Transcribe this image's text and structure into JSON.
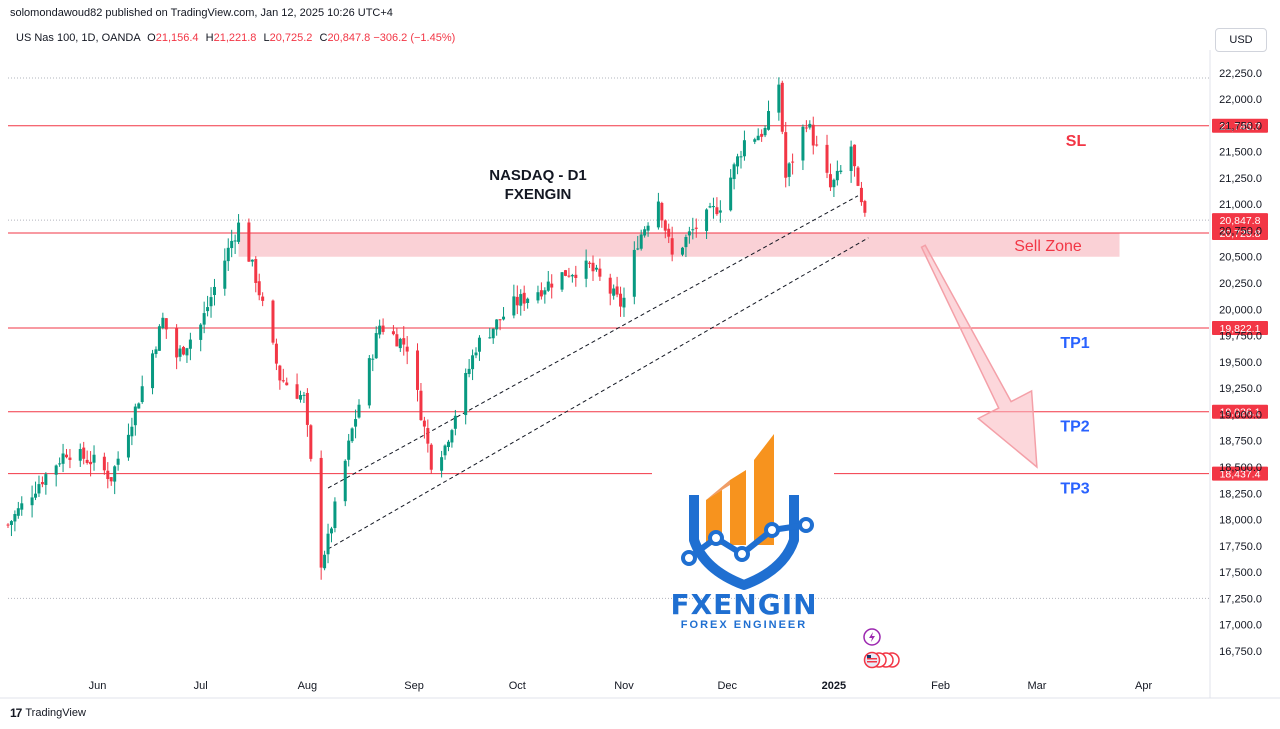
{
  "header": {
    "publisher_line": "solomondawoud82 published on TradingView.com, Jan 12, 2025 10:26 UTC+4",
    "symbol": "US Nas 100, 1D, OANDA",
    "ohlc": [
      {
        "label": "O",
        "value": "21,156.4"
      },
      {
        "label": "H",
        "value": "21,221.8"
      },
      {
        "label": "L",
        "value": "20,725.2"
      },
      {
        "label": "C",
        "value": "20,847.8"
      }
    ],
    "change": "−306.2 (−1.45%)",
    "currency": "USD"
  },
  "footer": {
    "brand": "TradingView"
  },
  "logo": {
    "name": "FXENGIN",
    "tagline": "FOREX ENGINEER"
  },
  "colors": {
    "bull": "#089981",
    "bear": "#f23645",
    "level_line": "#f23645",
    "zone_fill": "#f9c9cf",
    "tp_text": "#2962ff",
    "logo_orange": "#f7931e",
    "logo_blue": "#1f6fd1",
    "logo_navy": "#1a3a6b"
  },
  "chart_data": {
    "type": "candlestick",
    "title": "NASDAQ - D1",
    "subtitle": "FXENGIN",
    "y_range": [
      16550,
      22400
    ],
    "y_ticks": [
      {
        "value": 16750,
        "label": "16,750.0"
      },
      {
        "value": 17000,
        "label": "17,000.0"
      },
      {
        "value": 17250,
        "label": "17,250.0"
      },
      {
        "value": 17500,
        "label": "17,500.0"
      },
      {
        "value": 17750,
        "label": "17,750.0"
      },
      {
        "value": 18000,
        "label": "18,000.0"
      },
      {
        "value": 18250,
        "label": "18,250.0"
      },
      {
        "value": 18500,
        "label": "18,500.0"
      },
      {
        "value": 18750,
        "label": "18,750.0"
      },
      {
        "value": 19000,
        "label": "19,000.0"
      },
      {
        "value": 19250,
        "label": "19,250.0"
      },
      {
        "value": 19500,
        "label": "19,500.0"
      },
      {
        "value": 19750,
        "label": "19,750.0"
      },
      {
        "value": 20000,
        "label": "20,000.0"
      },
      {
        "value": 20250,
        "label": "20,250.0"
      },
      {
        "value": 20500,
        "label": "20,500.0"
      },
      {
        "value": 20750,
        "label": "20,750.0"
      },
      {
        "value": 21000,
        "label": "21,000.0"
      },
      {
        "value": 21250,
        "label": "21,250.0"
      },
      {
        "value": 21500,
        "label": "21,500.0"
      },
      {
        "value": 21750,
        "label": "21,750.0"
      },
      {
        "value": 22000,
        "label": "22,000.0"
      },
      {
        "value": 22250,
        "label": "22,250.0"
      }
    ],
    "x_range": [
      "2024-05-06",
      "2025-04-20"
    ],
    "x_ticks": [
      {
        "date": "2024-06-01",
        "label": "Jun",
        "bold": false
      },
      {
        "date": "2024-07-01",
        "label": "Jul",
        "bold": false
      },
      {
        "date": "2024-08-01",
        "label": "Aug",
        "bold": false
      },
      {
        "date": "2024-09-01",
        "label": "Sep",
        "bold": false
      },
      {
        "date": "2024-10-01",
        "label": "Oct",
        "bold": false
      },
      {
        "date": "2024-11-01",
        "label": "Nov",
        "bold": false
      },
      {
        "date": "2024-12-01",
        "label": "Dec",
        "bold": false
      },
      {
        "date": "2025-01-01",
        "label": "2025",
        "bold": true
      },
      {
        "date": "2025-02-01",
        "label": "Feb",
        "bold": false
      },
      {
        "date": "2025-03-01",
        "label": "Mar",
        "bold": false
      },
      {
        "date": "2025-04-01",
        "label": "Apr",
        "bold": false
      }
    ],
    "price_path": [
      [
        "2024-05-06",
        17950
      ],
      [
        "2024-05-15",
        18350
      ],
      [
        "2024-05-23",
        18650
      ],
      [
        "2024-05-31",
        18550
      ],
      [
        "2024-06-05",
        18400
      ],
      [
        "2024-06-12",
        19050
      ],
      [
        "2024-06-20",
        19900
      ],
      [
        "2024-06-24",
        19550
      ],
      [
        "2024-07-01",
        19850
      ],
      [
        "2024-07-10",
        20650
      ],
      [
        "2024-07-12",
        20800
      ],
      [
        "2024-07-17",
        20300
      ],
      [
        "2024-07-24",
        19350
      ],
      [
        "2024-07-31",
        19150
      ],
      [
        "2024-08-05",
        17600
      ],
      [
        "2024-08-07",
        17800
      ],
      [
        "2024-08-14",
        18850
      ],
      [
        "2024-08-22",
        19850
      ],
      [
        "2024-08-30",
        19650
      ],
      [
        "2024-09-06",
        18550
      ],
      [
        "2024-09-10",
        18700
      ],
      [
        "2024-09-19",
        19650
      ],
      [
        "2024-09-30",
        20050
      ],
      [
        "2024-10-08",
        20200
      ],
      [
        "2024-10-15",
        20350
      ],
      [
        "2024-10-22",
        20400
      ],
      [
        "2024-10-31",
        20050
      ],
      [
        "2024-11-01",
        20100
      ],
      [
        "2024-11-05",
        20650
      ],
      [
        "2024-11-11",
        21050
      ],
      [
        "2024-11-15",
        20500
      ],
      [
        "2024-11-21",
        20750
      ],
      [
        "2024-11-29",
        21000
      ],
      [
        "2024-12-06",
        21600
      ],
      [
        "2024-12-12",
        21700
      ],
      [
        "2024-12-16",
        22150
      ],
      [
        "2024-12-18",
        21250
      ],
      [
        "2024-12-24",
        21800
      ],
      [
        "2024-12-31",
        21150
      ],
      [
        "2025-01-03",
        21300
      ],
      [
        "2025-01-06",
        21550
      ],
      [
        "2025-01-08",
        21100
      ],
      [
        "2025-01-10",
        20848
      ]
    ],
    "levels": [
      {
        "value": 21745.7,
        "label": "21,745.7",
        "tag": "SL"
      },
      {
        "value": 20847.8,
        "label": "20,847.8",
        "tag": ""
      },
      {
        "value": 20725.8,
        "label": "20,725.8",
        "tag": ""
      },
      {
        "value": 19822.1,
        "label": "19,822.1",
        "tag": "TP1"
      },
      {
        "value": 19026.1,
        "label": "19,026.1",
        "tag": "TP2"
      },
      {
        "value": 18437.4,
        "label": "18,437.4",
        "tag": "TP3"
      }
    ],
    "dotted_levels": [
      22200,
      17250
    ],
    "sell_zone": {
      "from": 20500,
      "to": 20725.8,
      "start": "2024-07-12",
      "end": "2025-03-25",
      "label": "Sell Zone"
    },
    "trendlines": [
      {
        "from": [
          "2024-08-07",
          17720
        ],
        "to": [
          "2025-01-11",
          20680
        ]
      },
      {
        "from": [
          "2024-08-07",
          18300
        ],
        "to": [
          "2025-01-08",
          21080
        ]
      }
    ],
    "arrow": {
      "from": [
        "2025-01-27",
        20600
      ],
      "to": [
        "2025-03-01",
        18500
      ]
    }
  }
}
